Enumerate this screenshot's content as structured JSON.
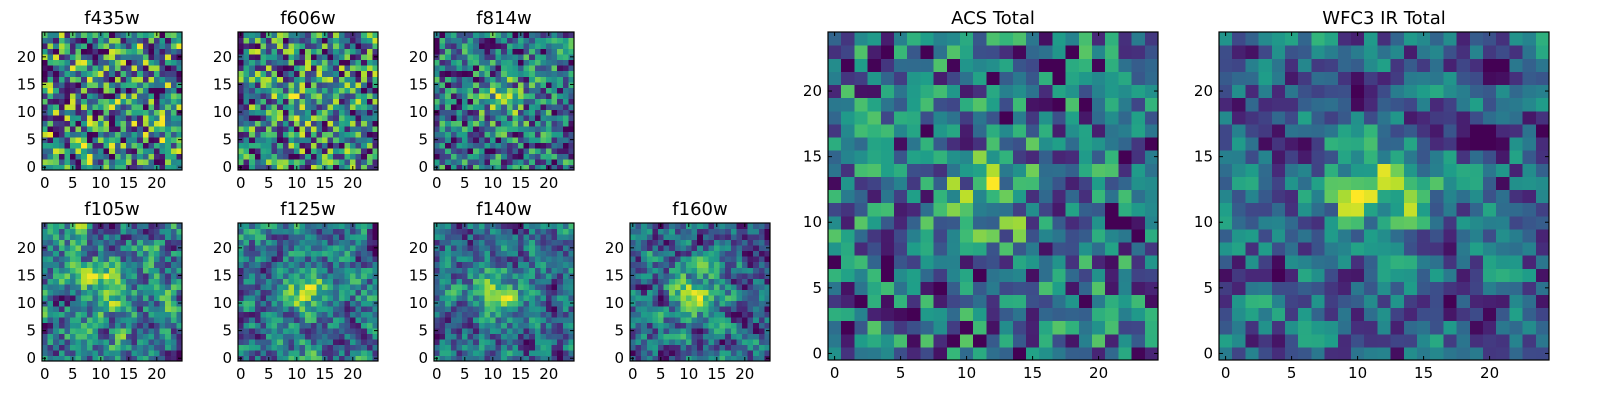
{
  "chart_data": [
    {
      "type": "heatmap",
      "title": "f435w",
      "grid_size": 25,
      "xlim": [
        0,
        24
      ],
      "ylim": [
        0,
        24
      ],
      "xticks": [
        0,
        5,
        10,
        15,
        20
      ],
      "yticks": [
        0,
        5,
        10,
        15,
        20
      ],
      "colormap": "viridis",
      "pattern": "noise",
      "seed": 11,
      "peak": null
    },
    {
      "type": "heatmap",
      "title": "f606w",
      "grid_size": 25,
      "xlim": [
        0,
        24
      ],
      "ylim": [
        0,
        24
      ],
      "xticks": [
        0,
        5,
        10,
        15,
        20
      ],
      "yticks": [
        0,
        5,
        10,
        15,
        20
      ],
      "colormap": "viridis",
      "pattern": "noise",
      "seed": 23,
      "peak": {
        "x": 12,
        "y": 12,
        "strength": 0.15
      }
    },
    {
      "type": "heatmap",
      "title": "f814w",
      "grid_size": 25,
      "xlim": [
        0,
        24
      ],
      "ylim": [
        0,
        24
      ],
      "xticks": [
        0,
        5,
        10,
        15,
        20
      ],
      "yticks": [
        0,
        5,
        10,
        15,
        20
      ],
      "colormap": "viridis",
      "pattern": "noise",
      "seed": 37,
      "peak": {
        "x": 12,
        "y": 12,
        "strength": 0.35
      }
    },
    {
      "type": "heatmap",
      "title": "f105w",
      "grid_size": 25,
      "xlim": [
        0,
        24
      ],
      "ylim": [
        0,
        24
      ],
      "xticks": [
        0,
        5,
        10,
        15,
        20
      ],
      "yticks": [
        0,
        5,
        10,
        15,
        20
      ],
      "colormap": "viridis",
      "pattern": "smooth",
      "seed": 41,
      "peak": {
        "x": 12,
        "y": 13,
        "strength": 0.3
      }
    },
    {
      "type": "heatmap",
      "title": "f125w",
      "grid_size": 25,
      "xlim": [
        0,
        24
      ],
      "ylim": [
        0,
        24
      ],
      "xticks": [
        0,
        5,
        10,
        15,
        20
      ],
      "yticks": [
        0,
        5,
        10,
        15,
        20
      ],
      "colormap": "viridis",
      "pattern": "smooth",
      "seed": 53,
      "peak": {
        "x": 12,
        "y": 12,
        "strength": 0.3
      }
    },
    {
      "type": "heatmap",
      "title": "f140w",
      "grid_size": 25,
      "xlim": [
        0,
        24
      ],
      "ylim": [
        0,
        24
      ],
      "xticks": [
        0,
        5,
        10,
        15,
        20
      ],
      "yticks": [
        0,
        5,
        10,
        15,
        20
      ],
      "colormap": "viridis",
      "pattern": "smooth",
      "seed": 67,
      "peak": {
        "x": 11,
        "y": 12,
        "strength": 0.35
      }
    },
    {
      "type": "heatmap",
      "title": "f160w",
      "grid_size": 25,
      "xlim": [
        0,
        24
      ],
      "ylim": [
        0,
        24
      ],
      "xticks": [
        0,
        5,
        10,
        15,
        20
      ],
      "yticks": [
        0,
        5,
        10,
        15,
        20
      ],
      "colormap": "viridis",
      "pattern": "smooth",
      "seed": 71,
      "peak": {
        "x": 12,
        "y": 12,
        "strength": 0.3
      }
    },
    {
      "type": "heatmap",
      "title": "ACS Total",
      "grid_size": 25,
      "xlim": [
        0,
        24
      ],
      "ylim": [
        0,
        24
      ],
      "xticks": [
        0,
        5,
        10,
        15,
        20
      ],
      "yticks": [
        0,
        5,
        10,
        15,
        20
      ],
      "colormap": "viridis",
      "pattern": "noise",
      "seed": 83,
      "peak": {
        "x": 12,
        "y": 12,
        "strength": 0.35
      }
    },
    {
      "type": "heatmap",
      "title": "WFC3 IR Total",
      "grid_size": 25,
      "xlim": [
        0,
        24
      ],
      "ylim": [
        0,
        24
      ],
      "xticks": [
        0,
        5,
        10,
        15,
        20
      ],
      "yticks": [
        0,
        5,
        10,
        15,
        20
      ],
      "colormap": "viridis",
      "pattern": "smooth",
      "seed": 97,
      "peak": {
        "x": 12,
        "y": 13,
        "strength": 0.45
      }
    }
  ]
}
